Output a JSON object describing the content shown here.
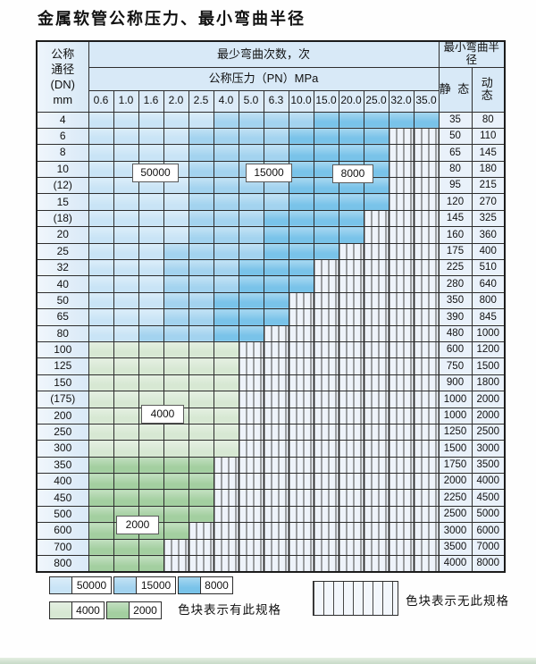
{
  "title": "金属软管公称压力、最小弯曲半径",
  "table": {
    "header": {
      "dn_lines": [
        "公称",
        "通径",
        "(DN)",
        "mm"
      ],
      "bend_cycles": "最少弯曲次数，次",
      "pressure": "公称压力（PN）MPa",
      "min_radius": "最小弯曲半径",
      "static": "静 态",
      "dynamic": "动 态",
      "pressures": [
        "0.6",
        "1.0",
        "1.6",
        "2.0",
        "2.5",
        "4.0",
        "5.0",
        "6.3",
        "10.0",
        "15.0",
        "20.0",
        "25.0",
        "32.0",
        "35.0"
      ]
    },
    "rows": [
      {
        "dn": "4",
        "colored_cols": 14,
        "zone": "blue",
        "static": "35",
        "dynamic": "80"
      },
      {
        "dn": "6",
        "colored_cols": 12,
        "zone": "blue",
        "static": "50",
        "dynamic": "110"
      },
      {
        "dn": "8",
        "colored_cols": 12,
        "zone": "blue",
        "static": "65",
        "dynamic": "145"
      },
      {
        "dn": "10",
        "colored_cols": 12,
        "zone": "blue",
        "static": "80",
        "dynamic": "180"
      },
      {
        "dn": "(12)",
        "colored_cols": 12,
        "zone": "blue",
        "static": "95",
        "dynamic": "215"
      },
      {
        "dn": "15",
        "colored_cols": 12,
        "zone": "blue",
        "static": "120",
        "dynamic": "270"
      },
      {
        "dn": "(18)",
        "colored_cols": 11,
        "zone": "blue",
        "static": "145",
        "dynamic": "325"
      },
      {
        "dn": "20",
        "colored_cols": 11,
        "zone": "blue",
        "static": "160",
        "dynamic": "360"
      },
      {
        "dn": "25",
        "colored_cols": 10,
        "zone": "blue",
        "static": "175",
        "dynamic": "400"
      },
      {
        "dn": "32",
        "colored_cols": 9,
        "zone": "blue",
        "static": "225",
        "dynamic": "510"
      },
      {
        "dn": "40",
        "colored_cols": 9,
        "zone": "blue",
        "static": "280",
        "dynamic": "640"
      },
      {
        "dn": "50",
        "colored_cols": 8,
        "zone": "blue",
        "static": "350",
        "dynamic": "800"
      },
      {
        "dn": "65",
        "colored_cols": 8,
        "zone": "blue",
        "static": "390",
        "dynamic": "845"
      },
      {
        "dn": "80",
        "colored_cols": 7,
        "zone": "blue",
        "static": "480",
        "dynamic": "1000"
      },
      {
        "dn": "100",
        "colored_cols": 6,
        "zone": "green-4000",
        "static": "600",
        "dynamic": "1200"
      },
      {
        "dn": "125",
        "colored_cols": 6,
        "zone": "green-4000",
        "static": "750",
        "dynamic": "1500"
      },
      {
        "dn": "150",
        "colored_cols": 6,
        "zone": "green-4000",
        "static": "900",
        "dynamic": "1800"
      },
      {
        "dn": "(175)",
        "colored_cols": 6,
        "zone": "green-4000",
        "static": "1000",
        "dynamic": "2000"
      },
      {
        "dn": "200",
        "colored_cols": 6,
        "zone": "green-4000",
        "static": "1000",
        "dynamic": "2000"
      },
      {
        "dn": "250",
        "colored_cols": 6,
        "zone": "green-4000",
        "static": "1250",
        "dynamic": "2500"
      },
      {
        "dn": "300",
        "colored_cols": 6,
        "zone": "green-4000",
        "static": "1500",
        "dynamic": "3000"
      },
      {
        "dn": "350",
        "colored_cols": 5,
        "zone": "green-2000",
        "static": "1750",
        "dynamic": "3500"
      },
      {
        "dn": "400",
        "colored_cols": 5,
        "zone": "green-2000",
        "static": "2000",
        "dynamic": "4000"
      },
      {
        "dn": "450",
        "colored_cols": 5,
        "zone": "green-2000",
        "static": "2250",
        "dynamic": "4500"
      },
      {
        "dn": "500",
        "colored_cols": 5,
        "zone": "green-2000",
        "static": "2500",
        "dynamic": "5000"
      },
      {
        "dn": "600",
        "colored_cols": 4,
        "zone": "green-2000",
        "static": "3000",
        "dynamic": "6000"
      },
      {
        "dn": "700",
        "colored_cols": 3,
        "zone": "green-2000",
        "static": "3500",
        "dynamic": "7000"
      },
      {
        "dn": "800",
        "colored_cols": 3,
        "zone": "green-2000",
        "static": "4000",
        "dynamic": "8000"
      }
    ]
  },
  "overlays": [
    {
      "label": "50000"
    },
    {
      "label": "15000"
    },
    {
      "label": "8000"
    },
    {
      "label": "4000"
    },
    {
      "label": "2000"
    }
  ],
  "legend": {
    "items": [
      {
        "label": "50000",
        "type": "blue-light"
      },
      {
        "label": "15000",
        "type": "blue-mid"
      },
      {
        "label": "8000",
        "type": "blue-dark"
      },
      {
        "label": "4000",
        "type": "green-light"
      },
      {
        "label": "2000",
        "type": "green-mid"
      }
    ],
    "has_spec": "色块表示有此规格",
    "no_spec": "色块表示无此规格"
  },
  "colors": {
    "cycles_50000": "#c9e4f6",
    "cycles_15000": "#a3d3ef",
    "cycles_8000": "#79c3e9",
    "cycles_4000": "#d7e8d3",
    "cycles_2000": "#a3cfa0",
    "header_bg": "#d8e9f7",
    "no_spec_bg": "#eef3fa"
  }
}
